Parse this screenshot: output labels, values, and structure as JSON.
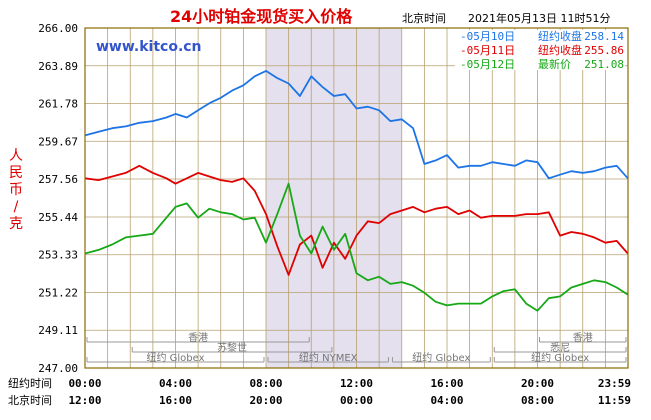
{
  "header": {
    "title": "24小时铂金现货买入价格",
    "timezone_label": "北京时间",
    "timestamp": "2021年05月13日 11时51分",
    "site": "www.kitco.cn"
  },
  "colors": {
    "may10": "#1c74e6",
    "may11": "#e00000",
    "may12": "#16a816",
    "grid": "#b8a070",
    "border": "#8b6b00",
    "shade": "#e4e0ee"
  },
  "chart_data": {
    "type": "line",
    "title": "24小时铂金现货买入价格",
    "ylabel": "人民币/克",
    "ylim": [
      247.0,
      266.0
    ],
    "y_ticks": [
      "266.00",
      "263.89",
      "261.78",
      "259.67",
      "257.56",
      "255.44",
      "253.33",
      "251.22",
      "249.11",
      "247.00"
    ],
    "xlim": [
      0,
      24
    ],
    "x_ticks_ny": [
      "00:00",
      "04:00",
      "08:00",
      "12:00",
      "16:00",
      "20:00",
      "23:59"
    ],
    "x_ticks_bj": [
      "12:00",
      "16:00",
      "20:00",
      "00:00",
      "04:00",
      "08:00",
      "11:59"
    ],
    "x_axis_label_ny": "纽约时间",
    "x_axis_label_bj": "北京时间",
    "highlight_range_hours": [
      8.0,
      14.0
    ],
    "legend_position": "top-right",
    "series": [
      {
        "name": "-05月10日",
        "stat_label": "纽约收盘",
        "stat_value": "258.14",
        "color": "#1c74e6",
        "x": [
          0,
          0.6,
          1.2,
          1.8,
          2.4,
          3.0,
          3.6,
          4.0,
          4.5,
          5.0,
          5.5,
          6.0,
          6.5,
          7.0,
          7.5,
          8.0,
          8.5,
          9.0,
          9.5,
          10.0,
          10.5,
          11.0,
          11.5,
          12.0,
          12.5,
          13.0,
          13.5,
          14.0,
          14.5,
          15.0,
          15.5,
          16.0,
          16.5,
          17.0,
          17.5,
          18.0,
          18.5,
          19.0,
          19.5,
          20.0,
          20.5,
          21.0,
          21.5,
          22.0,
          22.5,
          23.0,
          23.5,
          23.99
        ],
        "y": [
          260.0,
          260.2,
          260.4,
          260.5,
          260.7,
          260.8,
          261.0,
          261.2,
          261.0,
          261.4,
          261.8,
          262.1,
          262.5,
          262.8,
          263.3,
          263.6,
          263.2,
          262.9,
          262.2,
          263.3,
          262.7,
          262.2,
          262.3,
          261.5,
          261.6,
          261.4,
          260.8,
          260.9,
          260.4,
          258.4,
          258.6,
          258.9,
          258.2,
          258.3,
          258.3,
          258.5,
          258.4,
          258.3,
          258.6,
          258.5,
          257.6,
          257.8,
          258.0,
          257.9,
          258.0,
          258.2,
          258.3,
          257.6
        ]
      },
      {
        "name": "-05月11日",
        "stat_label": "纽约收盘",
        "stat_value": "255.86",
        "color": "#e00000",
        "x": [
          0,
          0.6,
          1.2,
          1.8,
          2.4,
          3.0,
          3.6,
          4.0,
          4.5,
          5.0,
          5.5,
          6.0,
          6.5,
          7.0,
          7.5,
          8.0,
          8.5,
          9.0,
          9.5,
          10.0,
          10.5,
          11.0,
          11.5,
          12.0,
          12.5,
          13.0,
          13.5,
          14.0,
          14.5,
          15.0,
          15.5,
          16.0,
          16.5,
          17.0,
          17.5,
          18.0,
          18.5,
          19.0,
          19.5,
          20.0,
          20.5,
          21.0,
          21.5,
          22.0,
          22.5,
          23.0,
          23.5,
          23.99
        ],
        "y": [
          257.6,
          257.5,
          257.7,
          257.9,
          258.3,
          257.9,
          257.6,
          257.3,
          257.6,
          257.9,
          257.7,
          257.5,
          257.4,
          257.6,
          256.9,
          255.6,
          253.8,
          252.2,
          253.9,
          254.4,
          252.6,
          254.0,
          253.1,
          254.4,
          255.2,
          255.1,
          255.6,
          255.8,
          256.0,
          255.7,
          255.9,
          256.0,
          255.6,
          255.8,
          255.4,
          255.5,
          255.5,
          255.5,
          255.6,
          255.6,
          255.7,
          254.4,
          254.6,
          254.5,
          254.3,
          254.0,
          254.1,
          253.4
        ]
      },
      {
        "name": "-05月12日",
        "stat_label": "最新价",
        "stat_value": "251.08",
        "color": "#16a816",
        "x": [
          0,
          0.6,
          1.2,
          1.8,
          2.4,
          3.0,
          3.6,
          4.0,
          4.5,
          5.0,
          5.5,
          6.0,
          6.5,
          7.0,
          7.5,
          8.0,
          8.5,
          9.0,
          9.5,
          10.0,
          10.5,
          11.0,
          11.5,
          12.0,
          12.5,
          13.0,
          13.5,
          14.0,
          14.5,
          15.0,
          15.5,
          16.0,
          16.5,
          17.0,
          17.5,
          18.0,
          18.5,
          19.0,
          19.5,
          20.0,
          20.5,
          21.0,
          21.5,
          22.0,
          22.5,
          23.0,
          23.5,
          23.99
        ],
        "y": [
          253.4,
          253.6,
          253.9,
          254.3,
          254.4,
          254.5,
          255.4,
          256.0,
          256.2,
          255.4,
          255.9,
          255.7,
          255.6,
          255.3,
          255.4,
          254.0,
          255.6,
          257.3,
          254.4,
          253.4,
          254.9,
          253.6,
          254.5,
          252.3,
          251.9,
          252.1,
          251.7,
          251.8,
          251.6,
          251.2,
          250.7,
          250.5,
          250.6,
          250.6,
          250.6,
          251.0,
          251.3,
          251.4,
          250.6,
          250.2,
          250.9,
          251.0,
          251.5,
          251.7,
          251.9,
          251.8,
          251.5,
          251.1
        ]
      }
    ]
  },
  "sessions": [
    {
      "label": "香港",
      "start": 0.0,
      "end": 10.0,
      "row": 0
    },
    {
      "label": "苏黎世",
      "start": 2.0,
      "end": 11.0,
      "row": 1
    },
    {
      "label": "纽约 Globex",
      "start": 0.0,
      "end": 8.0,
      "row": 2
    },
    {
      "label": "纽约 NYMEX",
      "start": 8.0,
      "end": 13.5,
      "row": 2
    },
    {
      "label": "纽约 Globex",
      "start": 13.5,
      "end": 18.0,
      "row": 2
    },
    {
      "label": "悉尼",
      "start": 18.0,
      "end": 24.0,
      "row": 1
    },
    {
      "label": "纽约 Globex",
      "start": 18.0,
      "end": 24.0,
      "row": 2
    },
    {
      "label": "香港",
      "start": 20.0,
      "end": 24.0,
      "row": 0
    }
  ]
}
